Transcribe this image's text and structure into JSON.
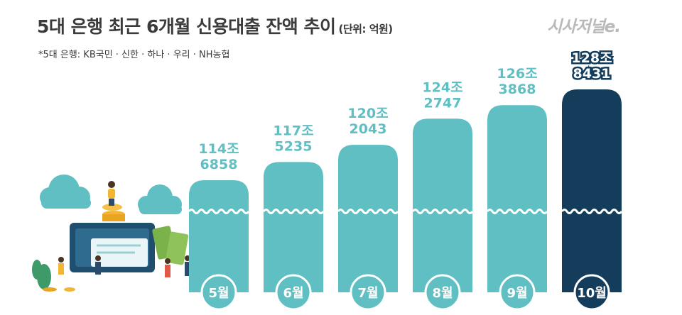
{
  "header": {
    "title": "5대 은행 최근 6개월 신용대출 잔액 추이",
    "unit": "(단위: 억원)",
    "note": "*5대 은행: KB국민 · 신한 · 하나 · 우리 · NH농협",
    "logo": "시사저널e."
  },
  "chart_data": {
    "type": "bar",
    "categories": [
      "5월",
      "6월",
      "7월",
      "8월",
      "9월",
      "10월"
    ],
    "values": [
      1146858,
      1175235,
      1202043,
      1242747,
      1263868,
      1288431
    ],
    "value_labels": [
      [
        "114조",
        "6858"
      ],
      [
        "117조",
        "5235"
      ],
      [
        "120조",
        "2043"
      ],
      [
        "124조",
        "2747"
      ],
      [
        "126조",
        "3868"
      ],
      [
        "128조",
        "8431"
      ]
    ],
    "axis_break": true,
    "colors": {
      "bar": "#5fbfc3",
      "highlight": "#143d5c",
      "label": "#5fbfc3",
      "wave": "#ffffff"
    }
  }
}
